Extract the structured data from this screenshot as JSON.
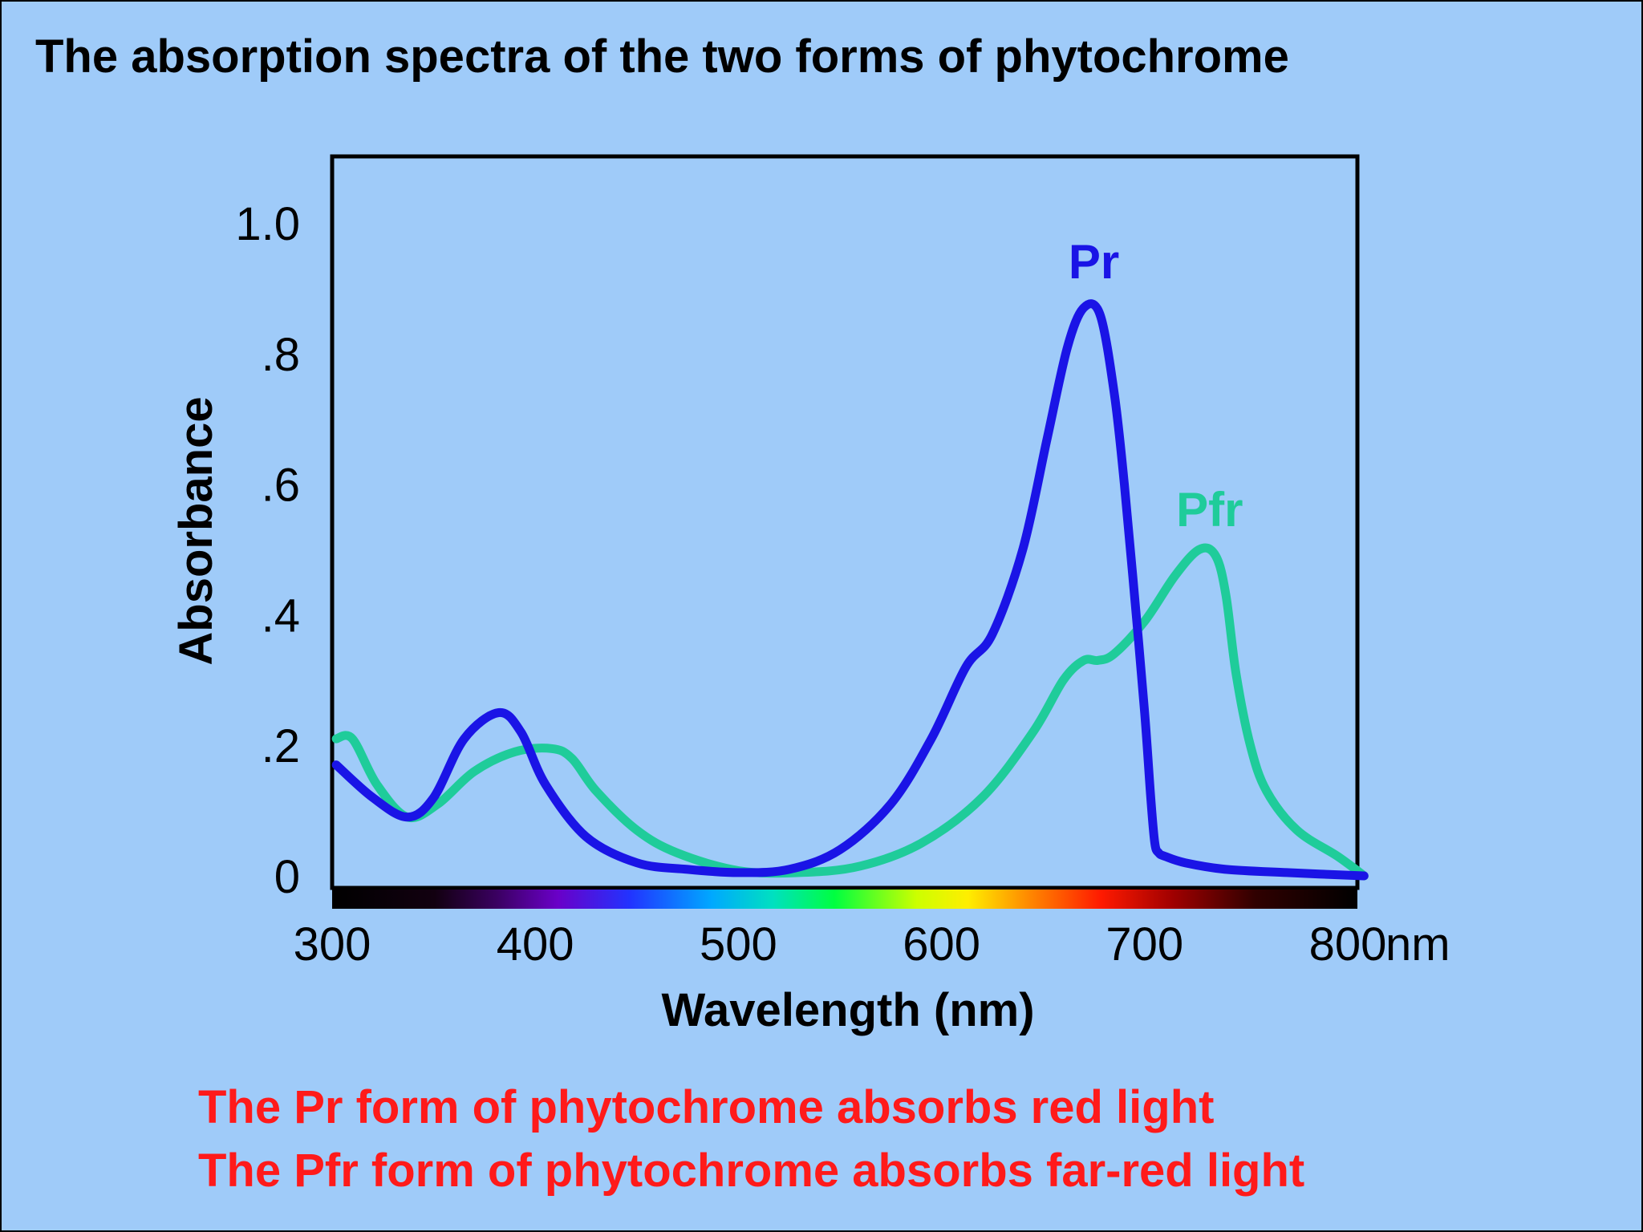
{
  "slide": {
    "title": "The absorption spectra of the two forms of phytochrome",
    "caption_lines": [
      "The Pr form of phytochrome absorbs red light",
      "The Pfr form of phytochrome absorbs far-red light"
    ],
    "colors": {
      "background": "#9fcbf9",
      "caption": "#ff1a1a",
      "title": "#000000"
    }
  },
  "chart_data": {
    "type": "line",
    "title": "The absorption spectra of the two forms of phytochrome",
    "xlabel": "Wavelength (nm)",
    "ylabel": "Absorbance",
    "xlim": [
      300,
      810
    ],
    "ylim": [
      0,
      1.1
    ],
    "x_unit_label": "nm",
    "x_ticks": [
      {
        "value": 300,
        "label": "300"
      },
      {
        "value": 400,
        "label": "400"
      },
      {
        "value": 500,
        "label": "500"
      },
      {
        "value": 600,
        "label": "600"
      },
      {
        "value": 700,
        "label": "700"
      },
      {
        "value": 800,
        "label": "800"
      }
    ],
    "y_ticks": [
      {
        "value": 0,
        "label": "0"
      },
      {
        "value": 0.2,
        "label": ".2"
      },
      {
        "value": 0.4,
        "label": ".4"
      },
      {
        "value": 0.6,
        "label": ".6"
      },
      {
        "value": 0.8,
        "label": ".8"
      },
      {
        "value": 1.0,
        "label": "1.0"
      }
    ],
    "grid": false,
    "spectrum_bar": true,
    "series": [
      {
        "name": "Pr",
        "color": "#1a14e6",
        "x": [
          302,
          320,
          337,
          350,
          365,
          382,
          393,
          405,
          425,
          450,
          475,
          500,
          525,
          550,
          575,
          595,
          612,
          625,
          640,
          652,
          662,
          670,
          678,
          685,
          690,
          695,
          700,
          703,
          705,
          707,
          710,
          720,
          740,
          770,
          808
        ],
        "y": [
          0.17,
          0.12,
          0.09,
          0.12,
          0.21,
          0.25,
          0.22,
          0.14,
          0.06,
          0.02,
          0.01,
          0.005,
          0.01,
          0.04,
          0.11,
          0.21,
          0.32,
          0.37,
          0.5,
          0.67,
          0.81,
          0.87,
          0.86,
          0.74,
          0.6,
          0.43,
          0.25,
          0.12,
          0.05,
          0.035,
          0.03,
          0.02,
          0.01,
          0.005,
          0.0
        ]
      },
      {
        "name": "Pfr",
        "color": "#1fcc9a",
        "x": [
          302,
          310,
          322,
          337,
          352,
          370,
          390,
          408,
          418,
          430,
          450,
          470,
          500,
          530,
          560,
          590,
          620,
          645,
          660,
          670,
          677,
          685,
          700,
          715,
          727,
          735,
          740,
          745,
          752,
          760,
          775,
          795,
          808
        ],
        "y": [
          0.21,
          0.21,
          0.14,
          0.09,
          0.11,
          0.16,
          0.19,
          0.195,
          0.18,
          0.13,
          0.07,
          0.035,
          0.008,
          0.005,
          0.015,
          0.05,
          0.12,
          0.22,
          0.3,
          0.33,
          0.33,
          0.34,
          0.39,
          0.46,
          0.5,
          0.49,
          0.43,
          0.31,
          0.2,
          0.13,
          0.07,
          0.03,
          0.0
        ]
      }
    ],
    "annotations": [
      {
        "text": "Pr",
        "series": "Pr",
        "x": 675,
        "y": 0.94
      },
      {
        "text": "Pfr",
        "series": "Pfr",
        "x": 732,
        "y": 0.56
      }
    ]
  }
}
